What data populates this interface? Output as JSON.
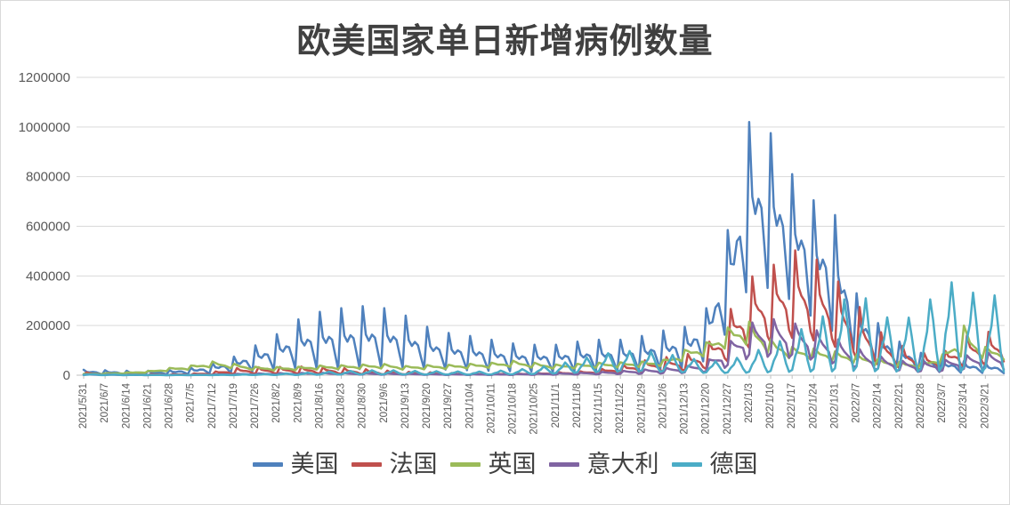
{
  "chart_data": {
    "type": "line",
    "title": "欧美国家单日新增病例数量",
    "xlabel": "",
    "ylabel": "",
    "ylim": [
      0,
      1200000
    ],
    "y_tick_values": [
      0,
      200000,
      400000,
      600000,
      800000,
      1000000,
      1200000
    ],
    "y_tick_labels": [
      "0",
      "200000",
      "400000",
      "600000",
      "800000",
      "1000000",
      "1200000"
    ],
    "grid": "horizontal",
    "legend_position": "bottom",
    "sampling": "daily, one point per day; weekly ticks labeled; week starts Monday 2021/5/31",
    "x_tick_labels": [
      "2021/5/31",
      "2021/6/7",
      "2021/6/14",
      "2021/6/21",
      "2021/6/28",
      "2021/7/5",
      "2021/7/12",
      "2021/7/19",
      "2021/7/26",
      "2021/8/2",
      "2021/8/9",
      "2021/8/16",
      "2021/8/23",
      "2021/8/30",
      "2021/9/6",
      "2021/9/13",
      "2021/9/20",
      "2021/9/27",
      "2021/10/4",
      "2021/10/11",
      "2021/10/18",
      "2021/10/25",
      "2021/11/1",
      "2021/11/8",
      "2021/11/15",
      "2021/11/22",
      "2021/11/29",
      "2021/12/6",
      "2021/12/13",
      "2021/12/20",
      "2021/12/27",
      "2022/1/3",
      "2022/1/10",
      "2022/1/17",
      "2022/1/24",
      "2022/1/31",
      "2022/2/7",
      "2022/2/14",
      "2022/2/21",
      "2022/2/28",
      "2022/3/7",
      "2022/3/14",
      "2022/3/21"
    ],
    "series": [
      {
        "id": "usa",
        "name": "美国",
        "color": "#4F81BD",
        "weekly_peak": [
          22000,
          20000,
          18000,
          18000,
          20000,
          30000,
          48000,
          75000,
          120000,
          165000,
          225000,
          255000,
          270000,
          278000,
          270000,
          240000,
          195000,
          170000,
          158000,
          143000,
          128000,
          123000,
          123000,
          135000,
          143000,
          143000,
          158000,
          180000,
          195000,
          270000,
          585000,
          1020000,
          975000,
          810000,
          705000,
          645000,
          330000,
          210000,
          135000,
          90000,
          68000,
          57000,
          50000,
          45000
        ],
        "weekly_trough": [
          3000,
          3000,
          2000,
          2000,
          3000,
          4000,
          6000,
          10000,
          16000,
          22000,
          28000,
          25000,
          22000,
          25000,
          30000,
          30000,
          25000,
          22000,
          20000,
          18000,
          16000,
          15000,
          15000,
          17000,
          18000,
          18000,
          20000,
          25000,
          30000,
          60000,
          180000,
          360000,
          350000,
          300000,
          230000,
          170000,
          90000,
          50000,
          30000,
          18000,
          12000,
          10000,
          9000,
          8000
        ],
        "weekday_shape": [
          1,
          0.55,
          0.45,
          0.55,
          0.5,
          0.25,
          0
        ]
      },
      {
        "id": "france",
        "name": "法国",
        "color": "#C0504D",
        "weekly_peak": [
          12000,
          9000,
          6000,
          4500,
          4000,
          6000,
          13000,
          28000,
          32000,
          33000,
          35000,
          32000,
          29000,
          25000,
          19000,
          14000,
          12000,
          9000,
          7000,
          7000,
          8000,
          9000,
          12000,
          14000,
          23000,
          38000,
          58000,
          72000,
          80000,
          116000,
          246000,
          392000,
          435000,
          507000,
          478000,
          392000,
          290000,
          181000,
          123000,
          90000,
          87000,
          160000,
          174000,
          180000
        ],
        "weekly_trough": [
          2000,
          1500,
          1000,
          800,
          700,
          1000,
          2000,
          5000,
          6000,
          6000,
          6000,
          6000,
          5000,
          4000,
          3000,
          2500,
          2000,
          1500,
          1200,
          1200,
          1500,
          1800,
          2500,
          3000,
          5000,
          8000,
          12000,
          15000,
          18000,
          25000,
          55000,
          110000,
          130000,
          150000,
          140000,
          115000,
          65000,
          42000,
          28000,
          20000,
          20000,
          35000,
          40000,
          42000
        ],
        "weekday_shape": [
          0,
          1,
          0.6,
          0.5,
          0.45,
          0.35,
          0.1
        ]
      },
      {
        "id": "uk",
        "name": "英国",
        "color": "#9BBB59",
        "weekly_peak": [
          5000,
          7500,
          11000,
          17000,
          29000,
          39000,
          55000,
          46000,
          34000,
          33000,
          34000,
          39000,
          40000,
          43000,
          45000,
          37000,
          41000,
          42000,
          46000,
          50000,
          58000,
          50000,
          43000,
          46000,
          50000,
          52000,
          55000,
          62000,
          102000,
          132000,
          192000,
          216000,
          144000,
          114000,
          108000,
          96000,
          84000,
          66000,
          54000,
          48000,
          84000,
          200000,
          114000,
          108000
        ],
        "weekly_trough": [
          3000,
          4500,
          6500,
          10000,
          17000,
          23000,
          33000,
          27000,
          20000,
          19000,
          20000,
          23000,
          24000,
          26000,
          27000,
          22000,
          24000,
          25000,
          27000,
          30000,
          34000,
          30000,
          26000,
          27000,
          30000,
          31000,
          33000,
          37000,
          60000,
          78000,
          112000,
          126000,
          84000,
          66000,
          63000,
          56000,
          49000,
          39000,
          32000,
          28000,
          49000,
          80000,
          67000,
          63000
        ],
        "weekday_shape": [
          1,
          0.8,
          0.55,
          0.5,
          0.45,
          0.25,
          0
        ]
      },
      {
        "id": "italy",
        "name": "意大利",
        "color": "#8064A2",
        "weekly_peak": [
          3500,
          2800,
          2000,
          1400,
          1100,
          1400,
          2800,
          5000,
          7000,
          8400,
          9000,
          9800,
          9000,
          8400,
          7700,
          6300,
          5300,
          4500,
          4200,
          3900,
          4900,
          6300,
          7700,
          9800,
          12600,
          17000,
          22000,
          28000,
          35000,
          53000,
          126000,
          210000,
          228000,
          212000,
          186000,
          150000,
          110000,
          78000,
          59000,
          50000,
          59000,
          78000,
          90000,
          92000
        ],
        "weekly_trough": [
          900,
          700,
          500,
          400,
          300,
          400,
          700,
          1300,
          1800,
          2100,
          2300,
          2500,
          2300,
          2100,
          1900,
          1600,
          1300,
          1100,
          1100,
          1000,
          1200,
          1600,
          1900,
          2500,
          3200,
          4300,
          5500,
          7000,
          9000,
          13000,
          32000,
          70000,
          75000,
          70000,
          62000,
          45000,
          30000,
          21000,
          16000,
          13000,
          15000,
          20000,
          23000,
          23000
        ],
        "weekday_shape": [
          0.1,
          1,
          0.75,
          0.6,
          0.5,
          0.4,
          0
        ]
      },
      {
        "id": "germany",
        "name": "德国",
        "color": "#4BACC6",
        "weekly_peak": [
          4000,
          2900,
          1900,
          1300,
          1000,
          1100,
          1600,
          2400,
          4000,
          5600,
          8000,
          13000,
          16000,
          19000,
          21000,
          18000,
          16000,
          16000,
          14000,
          16000,
          21000,
          29000,
          43000,
          62000,
          83000,
          96000,
          99000,
          88000,
          72000,
          56000,
          56000,
          88000,
          120000,
          160000,
          220000,
          260000,
          366000,
          235000,
          230000,
          235000,
          400000,
          340000,
          323000,
          320000
        ],
        "weekly_trough": [
          500,
          400,
          300,
          200,
          150,
          200,
          300,
          400,
          600,
          900,
          1200,
          2000,
          2500,
          3000,
          3200,
          2800,
          2500,
          2500,
          2200,
          2500,
          3200,
          4500,
          7000,
          10000,
          13000,
          15000,
          15000,
          14000,
          11000,
          9000,
          9000,
          10000,
          12000,
          14000,
          15000,
          16000,
          18000,
          16000,
          15000,
          15000,
          18000,
          16000,
          15000,
          15000
        ],
        "weekday_shape": [
          0.05,
          0.4,
          0.6,
          1,
          0.65,
          0.25,
          0
        ]
      }
    ]
  }
}
